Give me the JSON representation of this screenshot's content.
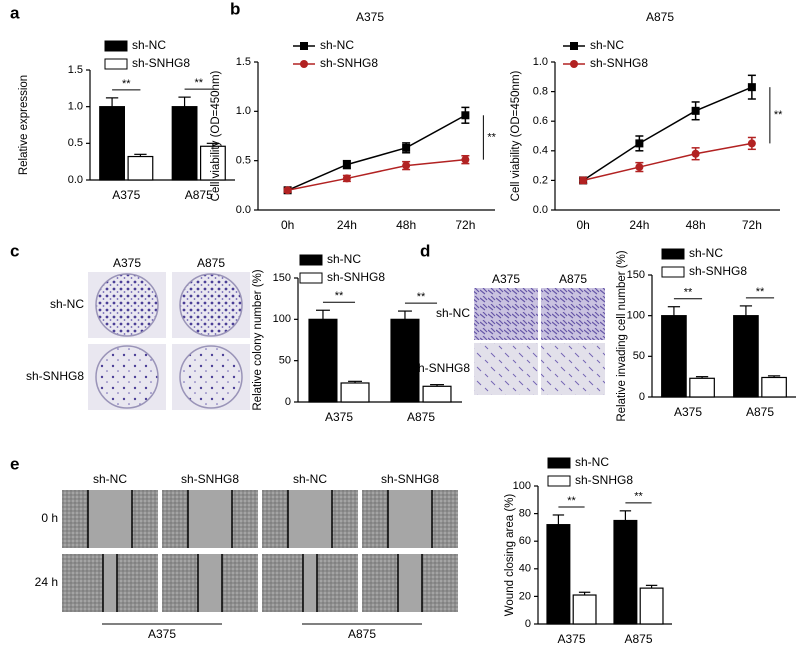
{
  "panel_labels": [
    "a",
    "b",
    "c",
    "d",
    "e"
  ],
  "images": {
    "c": {
      "columns": [
        "A375",
        "A875"
      ],
      "rows": [
        "sh-NC",
        "sh-SNHG8"
      ]
    },
    "d": {
      "columns": [
        "A375",
        "A875"
      ],
      "rows": [
        "sh-NC",
        "sh-SNHG8"
      ]
    },
    "e": {
      "columns": [
        "sh-NC",
        "sh-SNHG8",
        "sh-NC",
        "sh-SNHG8"
      ],
      "rows": [
        "0 h",
        "24 h"
      ],
      "groups": [
        "A375",
        "A875"
      ]
    }
  },
  "chart_data": [
    {
      "type": "bar",
      "ylabel": "Relative expression",
      "categories": [
        "A375",
        "A875"
      ],
      "series": [
        {
          "name": "sh-NC",
          "color": "#000000",
          "values": [
            1.0,
            1.0
          ],
          "errors": [
            0.12,
            0.13
          ]
        },
        {
          "name": "sh-SNHG8",
          "color": "#ffffff",
          "values": [
            0.32,
            0.46
          ],
          "errors": [
            0.03,
            0.04
          ]
        }
      ],
      "ylim": [
        0,
        1.5
      ],
      "yticks": [
        {
          "value": 0,
          "label": "0.0"
        },
        0.5,
        {
          "value": 1,
          "label": "1.0"
        },
        1.5
      ],
      "annotations": [
        "**",
        "**"
      ]
    },
    {
      "type": "line",
      "title": "A375",
      "ylabel": "Cell viability (OD=450nm)",
      "categories": [
        "0h",
        "24h",
        "48h",
        "72h"
      ],
      "series": [
        {
          "name": "sh-NC",
          "color": "#000000",
          "marker": "square",
          "values": [
            0.2,
            0.46,
            0.63,
            0.96
          ],
          "errors": [
            0.02,
            0.04,
            0.05,
            0.08
          ]
        },
        {
          "name": "sh-SNHG8",
          "color": "#b22222",
          "marker": "circle",
          "values": [
            0.2,
            0.32,
            0.45,
            0.51
          ],
          "errors": [
            0.02,
            0.03,
            0.04,
            0.04
          ]
        }
      ],
      "ylim": [
        0,
        1.5
      ],
      "yticks": [
        {
          "value": 0,
          "label": "0.0"
        },
        0.5,
        {
          "value": 1,
          "label": "1.0"
        },
        1.5
      ],
      "annotations": [
        "**"
      ]
    },
    {
      "type": "line",
      "title": "A875",
      "ylabel": "Cell viability (OD=450nm)",
      "categories": [
        "0h",
        "24h",
        "48h",
        "72h"
      ],
      "series": [
        {
          "name": "sh-NC",
          "color": "#000000",
          "marker": "square",
          "values": [
            0.2,
            0.45,
            0.67,
            0.83
          ],
          "errors": [
            0.02,
            0.05,
            0.06,
            0.08
          ]
        },
        {
          "name": "sh-SNHG8",
          "color": "#b22222",
          "marker": "circle",
          "values": [
            0.2,
            0.29,
            0.38,
            0.45
          ],
          "errors": [
            0.02,
            0.03,
            0.04,
            0.04
          ]
        }
      ],
      "ylim": [
        0,
        1.0
      ],
      "yticks": [
        {
          "value": 0,
          "label": "0.0"
        },
        0.2,
        0.4,
        0.6,
        0.8,
        {
          "value": 1,
          "label": "1.0"
        }
      ],
      "annotations": [
        "**"
      ]
    },
    {
      "type": "bar",
      "ylabel": "Relative colony number (%)",
      "categories": [
        "A375",
        "A875"
      ],
      "series": [
        {
          "name": "sh-NC",
          "color": "#000000",
          "values": [
            100,
            100
          ],
          "errors": [
            11,
            10
          ]
        },
        {
          "name": "sh-SNHG8",
          "color": "#ffffff",
          "values": [
            23,
            19
          ],
          "errors": [
            2,
            2
          ]
        }
      ],
      "ylim": [
        0,
        150
      ],
      "yticks": [
        0,
        50,
        100,
        150
      ],
      "annotations": [
        "**",
        "**"
      ]
    },
    {
      "type": "bar",
      "ylabel": "Relative invading cell number (%)",
      "categories": [
        "A375",
        "A875"
      ],
      "series": [
        {
          "name": "sh-NC",
          "color": "#000000",
          "values": [
            100,
            100
          ],
          "errors": [
            11,
            12
          ]
        },
        {
          "name": "sh-SNHG8",
          "color": "#ffffff",
          "values": [
            23,
            24
          ],
          "errors": [
            2,
            2
          ]
        }
      ],
      "ylim": [
        0,
        150
      ],
      "yticks": [
        0,
        50,
        100,
        150
      ],
      "annotations": [
        "**",
        "**"
      ]
    },
    {
      "type": "bar",
      "ylabel": "Wound closing area (%)",
      "categories": [
        "A375",
        "A875"
      ],
      "series": [
        {
          "name": "sh-NC",
          "color": "#000000",
          "values": [
            72,
            75
          ],
          "errors": [
            7,
            7
          ]
        },
        {
          "name": "sh-SNHG8",
          "color": "#ffffff",
          "values": [
            21,
            26
          ],
          "errors": [
            2,
            2
          ]
        }
      ],
      "ylim": [
        0,
        100
      ],
      "yticks": [
        0,
        20,
        40,
        60,
        80,
        100
      ],
      "annotations": [
        "**",
        "**"
      ]
    }
  ]
}
